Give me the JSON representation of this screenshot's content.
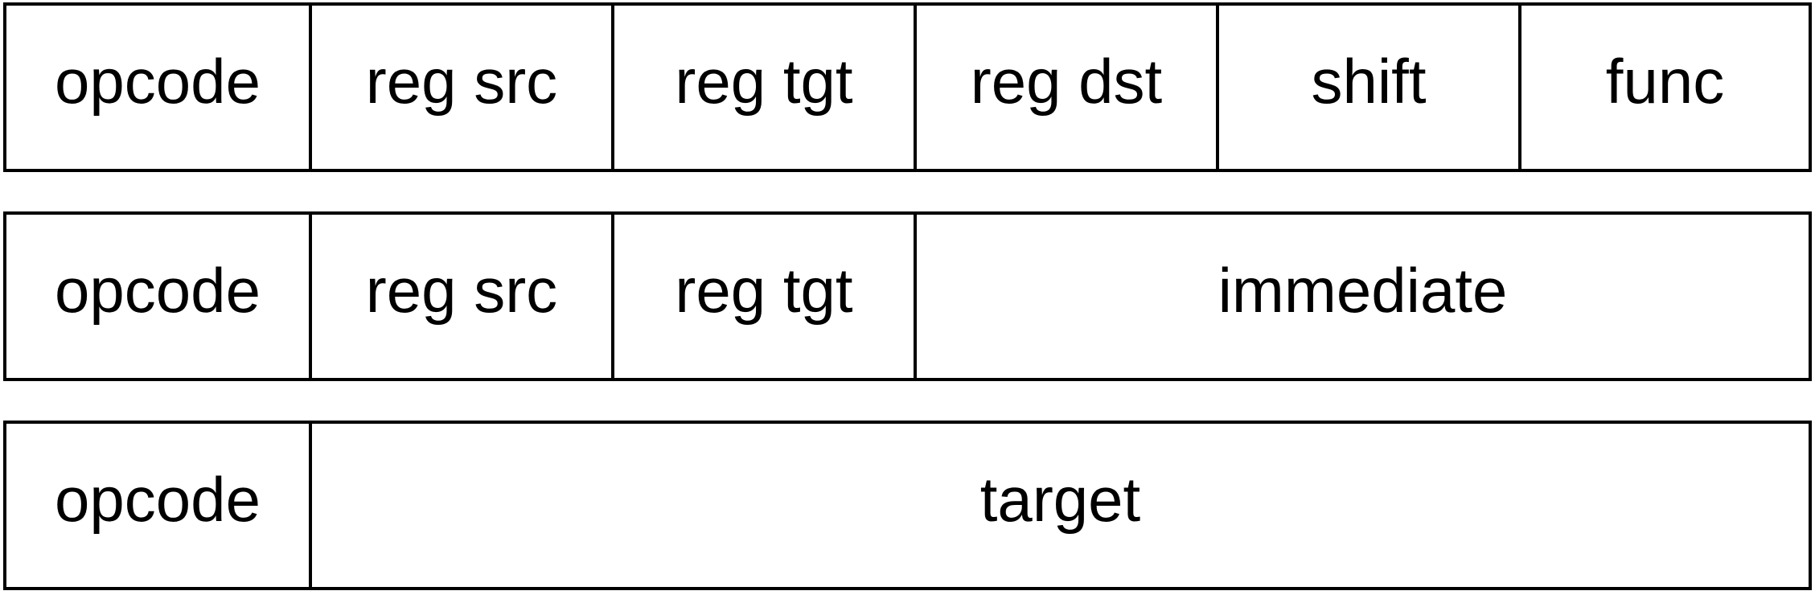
{
  "formats": [
    {
      "fields": [
        "opcode",
        "reg src",
        "reg tgt",
        "reg dst",
        "shift",
        "func"
      ]
    },
    {
      "fields": [
        "opcode",
        "reg src",
        "reg tgt",
        "immediate"
      ]
    },
    {
      "fields": [
        "opcode",
        "target"
      ]
    }
  ],
  "colors": {
    "line": "#000000",
    "background": "#ffffff",
    "text": "#000000"
  }
}
